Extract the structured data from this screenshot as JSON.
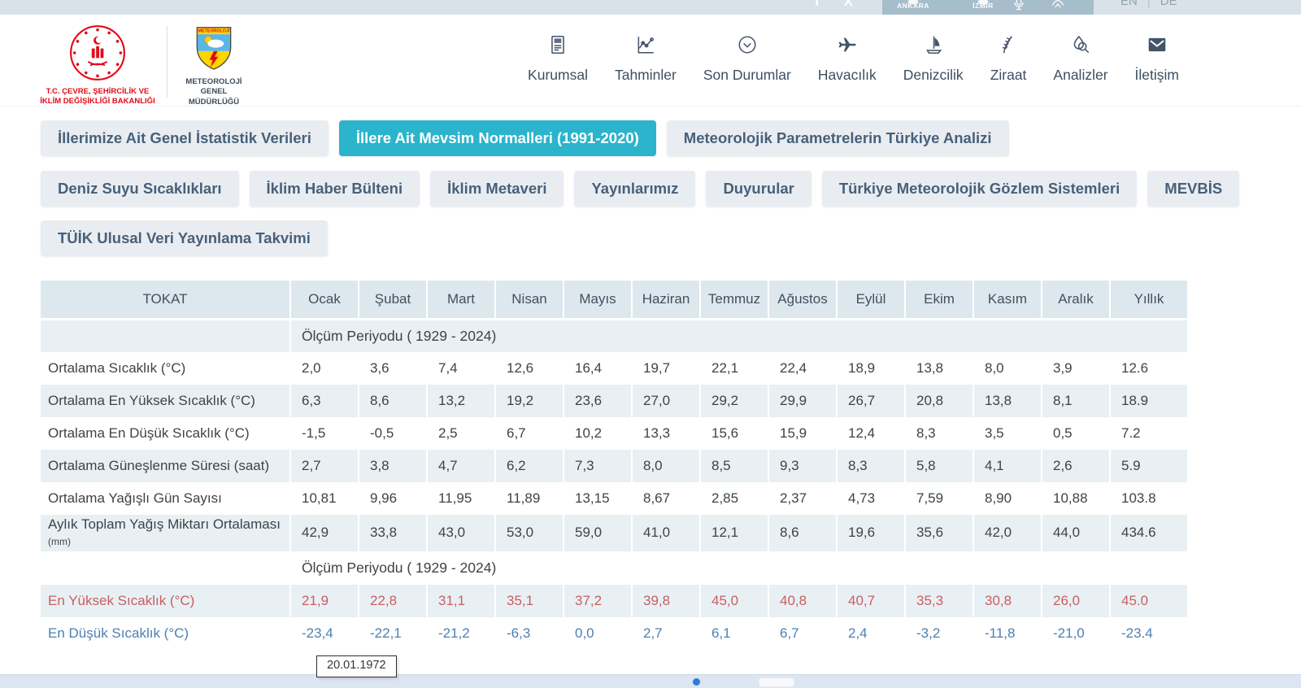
{
  "topbar": {
    "social": [
      {
        "id": "facebook",
        "icon": "facebook-icon",
        "glyph": "f"
      },
      {
        "id": "x",
        "icon": "x-icon",
        "glyph": "X"
      }
    ],
    "cities": [
      {
        "id": "ankara",
        "label": "ANKARA"
      },
      {
        "id": "izmir",
        "label": "İZMİR"
      }
    ],
    "languages": [
      "EN",
      "DE"
    ]
  },
  "header": {
    "ministry_logo": {
      "line1": "T.C. ÇEVRE, ŞEHİRCİLİK VE",
      "line2": "İKLİM DEĞİŞİKLİĞİ BAKANLIĞI"
    },
    "mgm_logo": {
      "shield_text": "METEOROLOJİ",
      "line1": "METEOROLOJİ",
      "line2": "GENEL MÜDÜRLÜĞÜ"
    },
    "nav": [
      {
        "id": "kurumsal",
        "label": "Kurumsal",
        "icon": "document-icon"
      },
      {
        "id": "tahminler",
        "label": "Tahminler",
        "icon": "chart-icon"
      },
      {
        "id": "son-durumlar",
        "label": "Son Durumlar",
        "icon": "clock-chevron-icon"
      },
      {
        "id": "havacilik",
        "label": "Havacılık",
        "icon": "plane-icon"
      },
      {
        "id": "denizcilik",
        "label": "Denizcilik",
        "icon": "boat-icon"
      },
      {
        "id": "ziraat",
        "label": "Ziraat",
        "icon": "wheat-icon"
      },
      {
        "id": "analizler",
        "label": "Analizler",
        "icon": "drop-search-icon"
      },
      {
        "id": "iletisim",
        "label": "İletişim",
        "icon": "mail-icon"
      }
    ]
  },
  "tabs": [
    {
      "id": "genel-istatistik",
      "row": 1,
      "label": "İllerimize Ait Genel İstatistik Verileri",
      "active": false
    },
    {
      "id": "mevsim-normalleri",
      "row": 1,
      "label": "İllere Ait Mevsim Normalleri (1991-2020)",
      "active": true
    },
    {
      "id": "turkiye-analizi",
      "row": 1,
      "label": "Meteorolojik Parametrelerin Türkiye Analizi",
      "active": false
    },
    {
      "id": "deniz-suyu",
      "row": 2,
      "label": "Deniz Suyu Sıcaklıkları",
      "active": false
    },
    {
      "id": "iklim-haber",
      "row": 2,
      "label": "İklim Haber Bülteni",
      "active": false
    },
    {
      "id": "iklim-metaveri",
      "row": 2,
      "label": "İklim Metaveri",
      "active": false
    },
    {
      "id": "yayinlarimiz",
      "row": 2,
      "label": "Yayınlarımız",
      "active": false
    },
    {
      "id": "duyurular",
      "row": 2,
      "label": "Duyurular",
      "active": false
    },
    {
      "id": "gozlem-sistemleri",
      "row": 2,
      "label": "Türkiye Meteorolojik Gözlem Sistemleri",
      "active": false
    },
    {
      "id": "mevbis",
      "row": 2,
      "label": "MEVBİS",
      "active": false
    },
    {
      "id": "tuik-takvim",
      "row": 3,
      "label": "TÜİK Ulusal Veri Yayınlama Takvimi",
      "active": false
    }
  ],
  "table": {
    "station": "TOKAT",
    "months": [
      "Ocak",
      "Şubat",
      "Mart",
      "Nisan",
      "Mayıs",
      "Haziran",
      "Temmuz",
      "Ağustos",
      "Eylül",
      "Ekim",
      "Kasım",
      "Aralık"
    ],
    "annual_label": "Yıllık",
    "sections": [
      {
        "period": "Ölçüm Periyodu ( 1929 - 2024)",
        "rows": [
          {
            "label": "Ortalama Sıcaklık (°C)",
            "suffix": "",
            "color": "default",
            "values": [
              "2,0",
              "3,6",
              "7,4",
              "12,6",
              "16,4",
              "19,7",
              "22,1",
              "22,4",
              "18,9",
              "13,8",
              "8,0",
              "3,9",
              "12.6"
            ]
          },
          {
            "label": "Ortalama En Yüksek Sıcaklık (°C)",
            "suffix": "",
            "color": "default",
            "values": [
              "6,3",
              "8,6",
              "13,2",
              "19,2",
              "23,6",
              "27,0",
              "29,2",
              "29,9",
              "26,7",
              "20,8",
              "13,8",
              "8,1",
              "18.9"
            ]
          },
          {
            "label": "Ortalama En Düşük Sıcaklık (°C)",
            "suffix": "",
            "color": "default",
            "values": [
              "-1,5",
              "-0,5",
              "2,5",
              "6,7",
              "10,2",
              "13,3",
              "15,6",
              "15,9",
              "12,4",
              "8,3",
              "3,5",
              "0,5",
              "7.2"
            ]
          },
          {
            "label": "Ortalama Güneşlenme Süresi (saat)",
            "suffix": "",
            "color": "default",
            "values": [
              "2,7",
              "3,8",
              "4,7",
              "6,2",
              "7,3",
              "8,0",
              "8,5",
              "9,3",
              "8,3",
              "5,8",
              "4,1",
              "2,6",
              "5.9"
            ]
          },
          {
            "label": "Ortalama Yağışlı Gün Sayısı",
            "suffix": "",
            "color": "default",
            "values": [
              "10,81",
              "9,96",
              "11,95",
              "11,89",
              "13,15",
              "8,67",
              "2,85",
              "2,37",
              "4,73",
              "7,59",
              "8,90",
              "10,88",
              "103.8"
            ]
          },
          {
            "label": "Aylık Toplam Yağış Miktarı Ortalaması",
            "suffix": "(mm)",
            "color": "default",
            "values": [
              "42,9",
              "33,8",
              "43,0",
              "53,0",
              "59,0",
              "41,0",
              "12,1",
              "8,6",
              "19,6",
              "35,6",
              "42,0",
              "44,0",
              "434.6"
            ]
          }
        ]
      },
      {
        "period": "Ölçüm Periyodu ( 1929 - 2024)",
        "rows": [
          {
            "label": "En Yüksek Sıcaklık (°C)",
            "suffix": "",
            "color": "red",
            "values": [
              "21,9",
              "22,8",
              "31,1",
              "35,1",
              "37,2",
              "39,8",
              "45,0",
              "40,8",
              "40,7",
              "35,3",
              "30,8",
              "26,0",
              "45.0"
            ]
          },
          {
            "label": "En Düşük Sıcaklık (°C)",
            "suffix": "",
            "color": "blue",
            "values": [
              "-23,4",
              "-22,1",
              "-21,2",
              "-6,3",
              "0,0",
              "2,7",
              "6,1",
              "6,7",
              "2,4",
              "-3,2",
              "-11,8",
              "-21,0",
              "-23.4"
            ]
          }
        ]
      }
    ]
  },
  "tooltip": {
    "text": "20.01.1972"
  },
  "colors": {
    "accent_teal": "#2bb4cc",
    "record_high_red": "#c75f62",
    "record_low_blue": "#4d80b2",
    "ministry_red": "#e30a17"
  }
}
